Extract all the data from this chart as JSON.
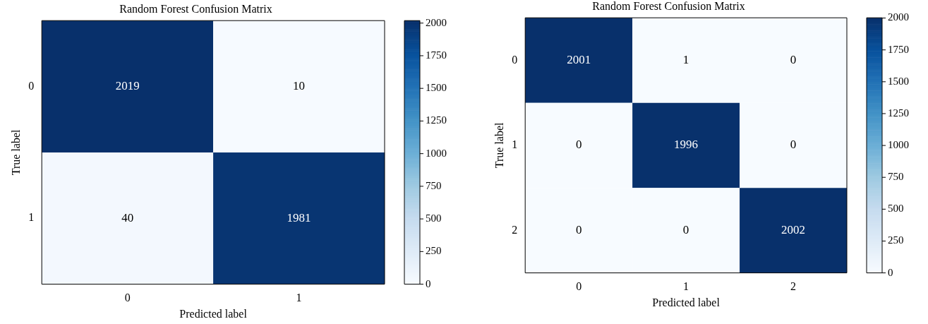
{
  "chart_data": [
    {
      "type": "heatmap",
      "title": "Random Forest Confusion Matrix",
      "xlabel": "Predicted label",
      "ylabel": "True label",
      "categories": [
        "0",
        "1"
      ],
      "y_categories": [
        "0",
        "1"
      ],
      "cells": [
        [
          2019,
          10
        ],
        [
          40,
          1981
        ]
      ],
      "clim": [
        0,
        2019
      ],
      "cticks": [
        0,
        250,
        500,
        750,
        1000,
        1250,
        1500,
        1750,
        2000
      ],
      "data_labels": true
    },
    {
      "type": "heatmap",
      "title": "Random Forest Confusion Matrix",
      "xlabel": "Predicted label",
      "ylabel": "True label",
      "categories": [
        "0",
        "1",
        "2"
      ],
      "y_categories": [
        "0",
        "1",
        "2"
      ],
      "cells": [
        [
          2001,
          1,
          0
        ],
        [
          0,
          1996,
          0
        ],
        [
          0,
          0,
          2002
        ]
      ],
      "clim": [
        0,
        2002
      ],
      "cticks": [
        0,
        250,
        500,
        750,
        1000,
        1250,
        1500,
        1750,
        2000
      ],
      "data_labels": true
    }
  ]
}
